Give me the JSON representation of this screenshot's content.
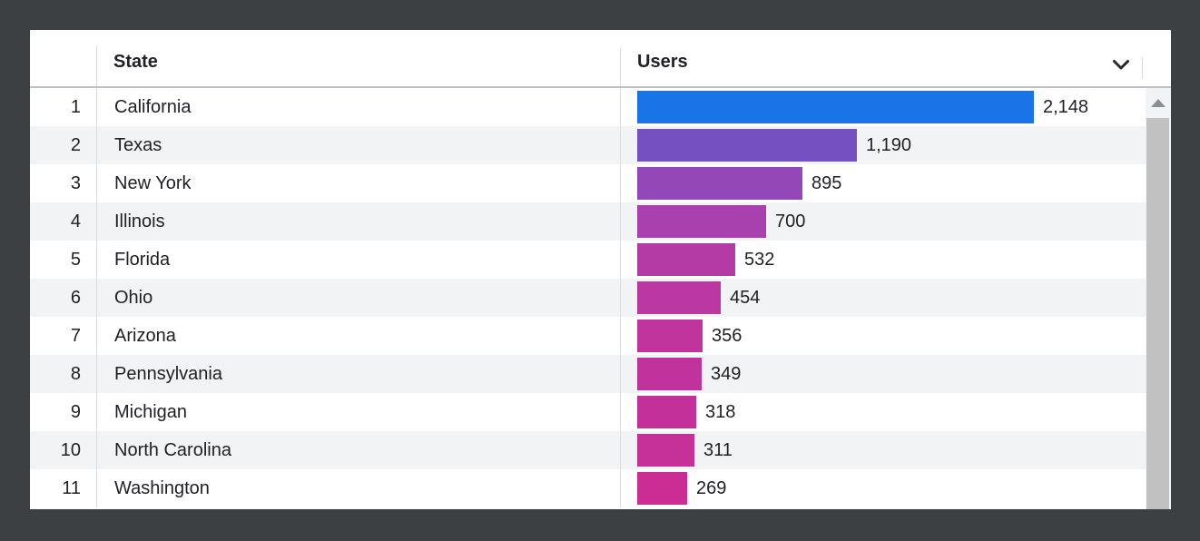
{
  "chart_data": {
    "type": "bar",
    "orientation": "horizontal",
    "title": "",
    "xlabel": "Users",
    "ylabel": "State",
    "categories": [
      "California",
      "Texas",
      "New York",
      "Illinois",
      "Florida",
      "Ohio",
      "Arizona",
      "Pennsylvania",
      "Michigan",
      "North Carolina",
      "Washington"
    ],
    "values": [
      2148,
      1190,
      895,
      700,
      532,
      454,
      356,
      349,
      318,
      311,
      269
    ],
    "value_labels": [
      "2,148",
      "1,190",
      "895",
      "700",
      "532",
      "454",
      "356",
      "349",
      "318",
      "311",
      "269"
    ],
    "xlim": [
      0,
      2148
    ],
    "grid": false,
    "legend": false,
    "bar_colors": [
      "#1b73e8",
      "#7450c1",
      "#9447b6",
      "#a840ae",
      "#b43aa6",
      "#bb37a2",
      "#c1339d",
      "#c2329c",
      "#c4309a",
      "#c53099",
      "#cb2d95"
    ]
  },
  "table": {
    "columns": {
      "num": "",
      "state": "State",
      "users": "Users"
    },
    "max_users": 2148,
    "rows": [
      {
        "rank": "1",
        "state": "California",
        "users": 2148,
        "users_display": "2,148",
        "color": "#1b73e8"
      },
      {
        "rank": "2",
        "state": "Texas",
        "users": 1190,
        "users_display": "1,190",
        "color": "#7450c1"
      },
      {
        "rank": "3",
        "state": "New York",
        "users": 895,
        "users_display": "895",
        "color": "#9447b6"
      },
      {
        "rank": "4",
        "state": "Illinois",
        "users": 700,
        "users_display": "700",
        "color": "#a840ae"
      },
      {
        "rank": "5",
        "state": "Florida",
        "users": 532,
        "users_display": "532",
        "color": "#b43aa6"
      },
      {
        "rank": "6",
        "state": "Ohio",
        "users": 454,
        "users_display": "454",
        "color": "#bb37a2"
      },
      {
        "rank": "7",
        "state": "Arizona",
        "users": 356,
        "users_display": "356",
        "color": "#c1339d"
      },
      {
        "rank": "8",
        "state": "Pennsylvania",
        "users": 349,
        "users_display": "349",
        "color": "#c2329c"
      },
      {
        "rank": "9",
        "state": "Michigan",
        "users": 318,
        "users_display": "318",
        "color": "#c4309a"
      },
      {
        "rank": "10",
        "state": "North Carolina",
        "users": 311,
        "users_display": "311",
        "color": "#c53099"
      },
      {
        "rank": "11",
        "state": "Washington",
        "users": 269,
        "users_display": "269",
        "color": "#cb2d95"
      }
    ]
  },
  "icons": {
    "sort": "chevron-down-icon",
    "scroll_up": "triangle-up-icon"
  },
  "colors": {
    "frame_background": "#3c4043",
    "row_stripe": "#f1f3f4",
    "separator": "#dadce0",
    "header_text": "#202124",
    "body_text": "#202124",
    "scrollbar_thumb": "#c1c1c1"
  }
}
